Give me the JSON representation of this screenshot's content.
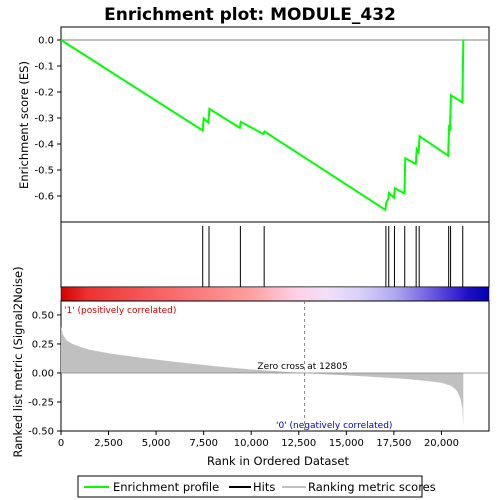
{
  "chart_data": {
    "type": "line",
    "title": "Enrichment plot: MODULE_432",
    "colors": {
      "enrichment": "#00ff00",
      "hits": "#000000",
      "metric_fill": "#c0c0c0",
      "zero_line": "#808080",
      "positive_label": "#cc0000",
      "negative_label": "#0000cc"
    },
    "es_panel": {
      "ylabel": "Enrichment score (ES)",
      "ylim": [
        -0.7,
        0.05
      ],
      "yticks": [
        "0.0",
        "-0.1",
        "-0.2",
        "-0.3",
        "-0.4",
        "-0.5",
        "-0.6"
      ],
      "ytick_values": [
        0.0,
        -0.1,
        -0.2,
        -0.3,
        -0.4,
        -0.5,
        -0.6
      ],
      "series": [
        {
          "name": "Enrichment profile",
          "x": [
            0,
            7450,
            7500,
            7750,
            7800,
            9400,
            9450,
            10650,
            10700,
            17050,
            17100,
            17200,
            17250,
            17500,
            17550,
            18050,
            18100,
            18650,
            18700,
            18800,
            18850,
            20350,
            20400,
            20450,
            20500,
            21100,
            21150
          ],
          "y": [
            0.0,
            -0.348,
            -0.302,
            -0.318,
            -0.265,
            -0.338,
            -0.315,
            -0.362,
            -0.352,
            -0.653,
            -0.625,
            -0.612,
            -0.588,
            -0.607,
            -0.57,
            -0.59,
            -0.455,
            -0.477,
            -0.42,
            -0.432,
            -0.37,
            -0.445,
            -0.335,
            -0.34,
            -0.213,
            -0.24,
            0.0
          ]
        }
      ]
    },
    "hits": {
      "positions": [
        7450,
        7780,
        9430,
        10680,
        17080,
        17230,
        17530,
        18070,
        18670,
        18830,
        20380,
        20480,
        21120
      ]
    },
    "metric_panel": {
      "ylabel": "Ranked list metric (Signal2Noise)",
      "ylim": [
        -0.5,
        0.62
      ],
      "yticks": [
        "0.50",
        "0.25",
        "0.00",
        "-0.25",
        "-0.50"
      ],
      "ytick_values": [
        0.5,
        0.25,
        0.0,
        -0.25,
        -0.5
      ],
      "xlabel": "Rank in Ordered Dataset",
      "xlim": [
        0,
        22500
      ],
      "xticks": [
        "0",
        "2,500",
        "5,000",
        "7,500",
        "10,000",
        "12,500",
        "15,000",
        "17,500",
        "20,000"
      ],
      "xtick_values": [
        0,
        2500,
        5000,
        7500,
        10000,
        12500,
        15000,
        17500,
        20000
      ],
      "curve": {
        "x": [
          0,
          100,
          300,
          600,
          1000,
          1500,
          2500,
          4000,
          6000,
          8000,
          10000,
          12000,
          12805,
          14000,
          16000,
          18000,
          19000,
          20000,
          20500,
          20800,
          21000,
          21100,
          21150
        ],
        "y": [
          0.4,
          0.33,
          0.28,
          0.25,
          0.225,
          0.2,
          0.17,
          0.135,
          0.095,
          0.06,
          0.03,
          0.008,
          0.0,
          -0.012,
          -0.03,
          -0.05,
          -0.065,
          -0.085,
          -0.11,
          -0.15,
          -0.22,
          -0.3,
          -0.47
        ]
      },
      "zero_cross_label": "Zero cross at 12805",
      "zero_cross": 12805,
      "positive_label": "'1' (positively correlated)",
      "negative_label": "'0' (negatively correlated)"
    },
    "legend": {
      "placement": "bottom",
      "entries": [
        "Enrichment profile",
        "Hits",
        "Ranking metric scores"
      ]
    }
  }
}
